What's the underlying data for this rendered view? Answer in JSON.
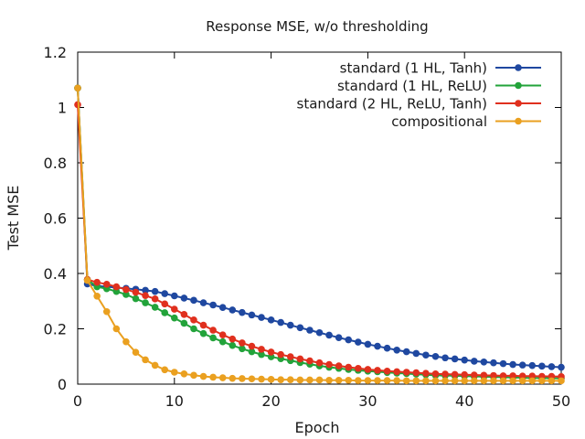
{
  "chart_data": {
    "type": "line",
    "title": "Response MSE, w/o thresholding",
    "xlabel": "Epoch",
    "ylabel": "Test MSE",
    "xlim": [
      0,
      50
    ],
    "ylim": [
      0,
      1.2
    ],
    "xticks": [
      0,
      10,
      20,
      30,
      40,
      50
    ],
    "xtick_labels": [
      "0",
      "10",
      "20",
      "30",
      "40",
      "50"
    ],
    "yticks": [
      0,
      0.2,
      0.4,
      0.6,
      0.8,
      1,
      1.2
    ],
    "ytick_labels": [
      "0",
      "0.2",
      "0.4",
      "0.6",
      "0.8",
      "1",
      "1.2"
    ],
    "grid": false,
    "legend_position": "top-right",
    "x": [
      0,
      1,
      2,
      3,
      4,
      5,
      6,
      7,
      8,
      9,
      10,
      11,
      12,
      13,
      14,
      15,
      16,
      17,
      18,
      19,
      20,
      21,
      22,
      23,
      24,
      25,
      26,
      27,
      28,
      29,
      30,
      31,
      32,
      33,
      34,
      35,
      36,
      37,
      38,
      39,
      40,
      41,
      42,
      43,
      44,
      45,
      46,
      47,
      48,
      49,
      50
    ],
    "series": [
      {
        "name": "standard (1 HL, Tanh)",
        "color": "#1f48a0",
        "values": [
          1.07,
          0.362,
          0.355,
          0.352,
          0.349,
          0.346,
          0.343,
          0.339,
          0.335,
          0.327,
          0.319,
          0.311,
          0.303,
          0.294,
          0.286,
          0.277,
          0.268,
          0.259,
          0.25,
          0.241,
          0.232,
          0.223,
          0.213,
          0.204,
          0.195,
          0.186,
          0.177,
          0.168,
          0.16,
          0.152,
          0.144,
          0.137,
          0.13,
          0.123,
          0.117,
          0.111,
          0.105,
          0.1,
          0.095,
          0.091,
          0.087,
          0.083,
          0.08,
          0.077,
          0.074,
          0.071,
          0.069,
          0.067,
          0.065,
          0.063,
          0.061
        ]
      },
      {
        "name": "standard (1 HL, ReLU)",
        "color": "#22a33a",
        "values": [
          1.07,
          0.378,
          0.352,
          0.345,
          0.335,
          0.324,
          0.309,
          0.294,
          0.278,
          0.258,
          0.239,
          0.22,
          0.2,
          0.183,
          0.167,
          0.153,
          0.14,
          0.128,
          0.117,
          0.107,
          0.099,
          0.092,
          0.085,
          0.078,
          0.072,
          0.066,
          0.061,
          0.057,
          0.053,
          0.05,
          0.047,
          0.045,
          0.042,
          0.04,
          0.038,
          0.036,
          0.034,
          0.032,
          0.031,
          0.03,
          0.029,
          0.028,
          0.027,
          0.026,
          0.025,
          0.024,
          0.023,
          0.022,
          0.022,
          0.021,
          0.021
        ]
      },
      {
        "name": "standard (2 HL, ReLU, Tanh)",
        "color": "#e0301e",
        "values": [
          1.01,
          0.378,
          0.368,
          0.361,
          0.352,
          0.342,
          0.332,
          0.32,
          0.308,
          0.29,
          0.271,
          0.252,
          0.232,
          0.213,
          0.195,
          0.178,
          0.163,
          0.149,
          0.137,
          0.126,
          0.116,
          0.107,
          0.099,
          0.091,
          0.084,
          0.077,
          0.071,
          0.066,
          0.061,
          0.057,
          0.053,
          0.05,
          0.047,
          0.045,
          0.043,
          0.041,
          0.039,
          0.037,
          0.036,
          0.035,
          0.034,
          0.033,
          0.032,
          0.031,
          0.03,
          0.03,
          0.029,
          0.029,
          0.028,
          0.028,
          0.027
        ]
      },
      {
        "name": "compositional",
        "color": "#eaa020",
        "values": [
          1.07,
          0.375,
          0.318,
          0.262,
          0.2,
          0.153,
          0.115,
          0.088,
          0.068,
          0.052,
          0.043,
          0.037,
          0.032,
          0.028,
          0.025,
          0.023,
          0.021,
          0.02,
          0.019,
          0.018,
          0.017,
          0.016,
          0.016,
          0.015,
          0.015,
          0.015,
          0.014,
          0.014,
          0.014,
          0.013,
          0.013,
          0.013,
          0.013,
          0.013,
          0.012,
          0.012,
          0.012,
          0.012,
          0.012,
          0.012,
          0.012,
          0.012,
          0.012,
          0.012,
          0.012,
          0.012,
          0.012,
          0.012,
          0.012,
          0.012,
          0.012
        ]
      }
    ]
  }
}
